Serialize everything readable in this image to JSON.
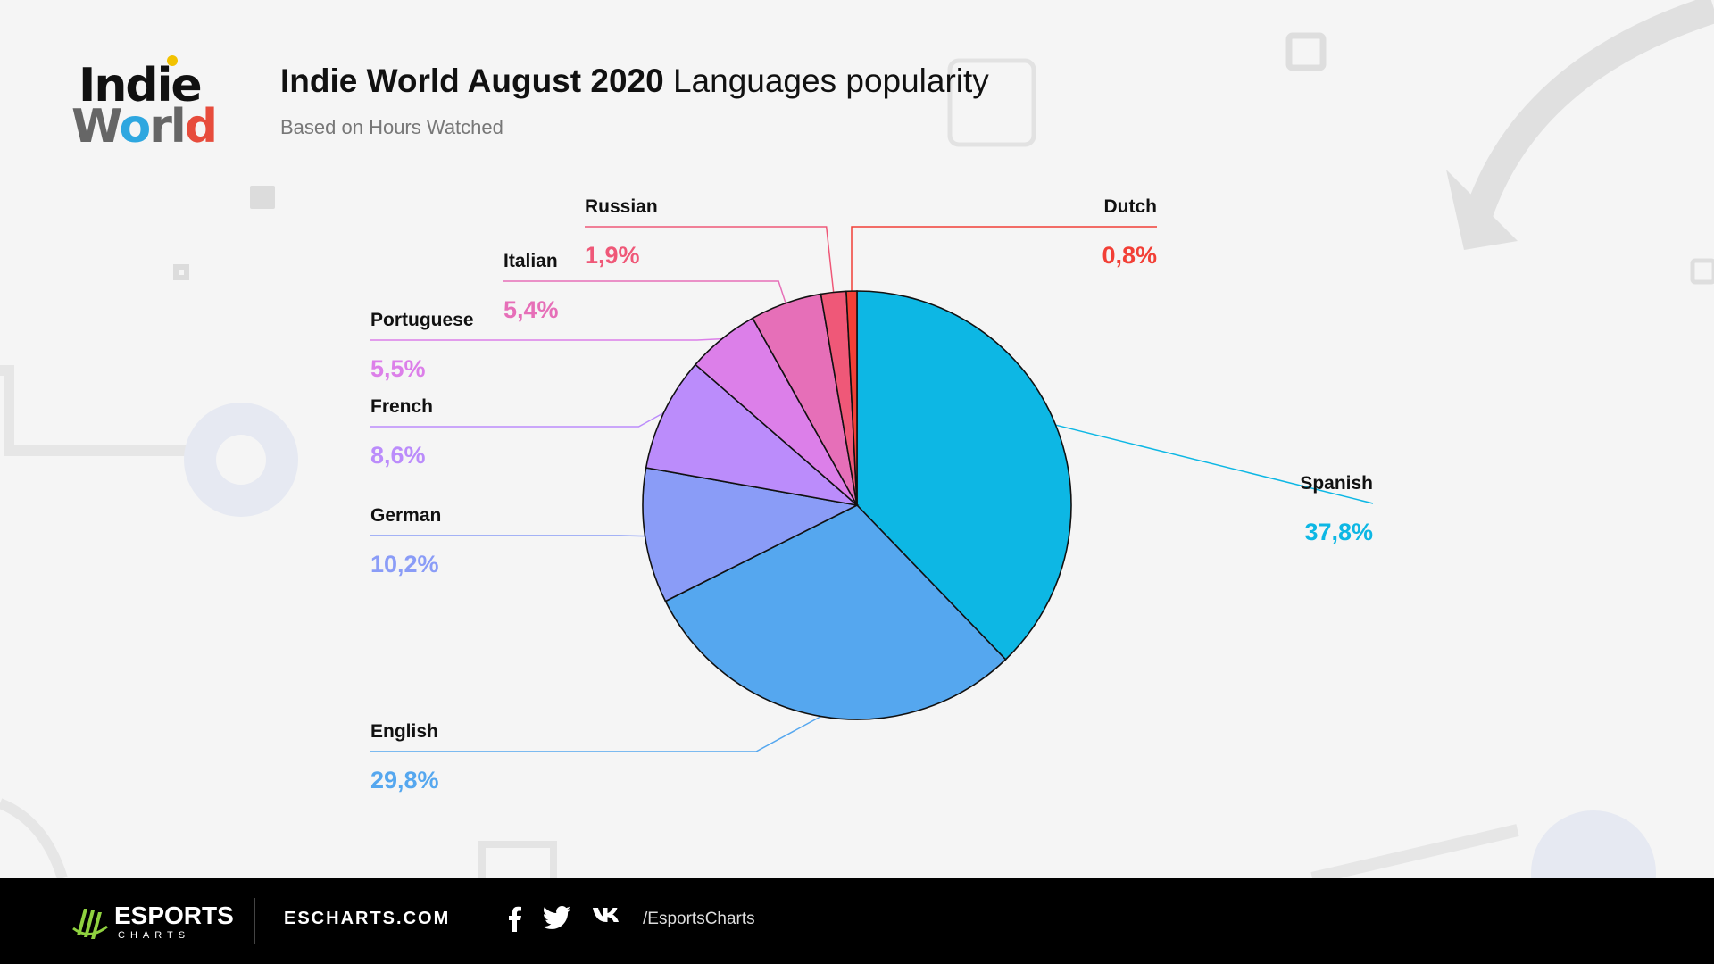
{
  "header": {
    "logo_line1": "Indie",
    "logo_line2_a": "W",
    "logo_line2_o": "o",
    "logo_line2_b": "rl",
    "logo_line2_d": "d",
    "title_bold": "Indie World August 2020",
    "title_regular": "Languages popularity",
    "subtitle": "Based on Hours Watched"
  },
  "chart_data": {
    "type": "pie",
    "title": "Indie World August 2020 Languages popularity",
    "subtitle": "Based on Hours Watched",
    "slices": [
      {
        "label": "Spanish",
        "value": 37.8,
        "display": "37,8%",
        "color": "#0db7e4"
      },
      {
        "label": "English",
        "value": 29.8,
        "display": "29,8%",
        "color": "#55a7ef"
      },
      {
        "label": "German",
        "value": 10.2,
        "display": "10,2%",
        "color": "#8a9cf7"
      },
      {
        "label": "French",
        "value": 8.6,
        "display": "8,6%",
        "color": "#bb8cfb"
      },
      {
        "label": "Portuguese",
        "value": 5.5,
        "display": "5,5%",
        "color": "#dc7fe9"
      },
      {
        "label": "Italian",
        "value": 5.4,
        "display": "5,4%",
        "color": "#e66fb8"
      },
      {
        "label": "Russian",
        "value": 1.9,
        "display": "1,9%",
        "color": "#ef5878"
      },
      {
        "label": "Dutch",
        "value": 0.8,
        "display": "0,8%",
        "color": "#f23f36"
      }
    ]
  },
  "footer": {
    "brand_name": "ESPORTS",
    "brand_sub": "CHARTS",
    "site": "ESCHARTS.COM",
    "handle": "/EsportsCharts",
    "social_icons": [
      "facebook-icon",
      "twitter-icon",
      "vk-icon"
    ]
  }
}
